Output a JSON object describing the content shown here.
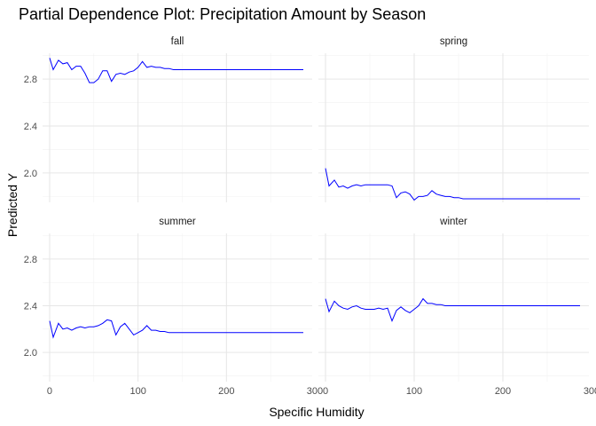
{
  "chart_data": {
    "type": "line",
    "title": "Partial Dependence Plot: Precipitation Amount by Season",
    "xlabel": "Specific Humidity",
    "ylabel": "Predicted Y",
    "xlim": [
      -8,
      297
    ],
    "ylim": [
      1.75,
      3.02
    ],
    "xticks": [
      0,
      100,
      200,
      300
    ],
    "yticks": [
      2.0,
      2.4,
      2.8
    ],
    "grid": true,
    "line_color": "#0000ff",
    "panels": [
      {
        "name": "fall",
        "x": [
          0,
          4,
          10,
          15,
          20,
          25,
          30,
          35,
          40,
          45,
          50,
          55,
          60,
          65,
          70,
          75,
          80,
          85,
          90,
          95,
          100,
          105,
          110,
          115,
          120,
          125,
          130,
          135,
          140,
          145,
          150,
          155,
          160,
          200,
          250,
          287
        ],
        "y": [
          2.98,
          2.88,
          2.96,
          2.93,
          2.94,
          2.88,
          2.91,
          2.91,
          2.85,
          2.77,
          2.77,
          2.8,
          2.87,
          2.87,
          2.78,
          2.84,
          2.85,
          2.84,
          2.86,
          2.87,
          2.9,
          2.95,
          2.9,
          2.91,
          2.9,
          2.9,
          2.89,
          2.89,
          2.88,
          2.88,
          2.88,
          2.88,
          2.88,
          2.88,
          2.88,
          2.88
        ]
      },
      {
        "name": "spring",
        "x": [
          0,
          4,
          10,
          15,
          20,
          25,
          30,
          35,
          40,
          45,
          50,
          55,
          60,
          65,
          70,
          75,
          80,
          85,
          90,
          95,
          100,
          105,
          110,
          115,
          120,
          125,
          130,
          135,
          140,
          145,
          150,
          155,
          160,
          200,
          250,
          287
        ],
        "y": [
          2.04,
          1.89,
          1.94,
          1.88,
          1.89,
          1.87,
          1.89,
          1.9,
          1.89,
          1.9,
          1.9,
          1.9,
          1.9,
          1.9,
          1.9,
          1.89,
          1.79,
          1.83,
          1.84,
          1.82,
          1.77,
          1.8,
          1.8,
          1.81,
          1.85,
          1.82,
          1.81,
          1.8,
          1.8,
          1.79,
          1.79,
          1.78,
          1.78,
          1.78,
          1.78,
          1.78
        ]
      },
      {
        "name": "summer",
        "x": [
          0,
          4,
          10,
          15,
          20,
          25,
          30,
          35,
          40,
          45,
          50,
          55,
          60,
          65,
          70,
          75,
          80,
          85,
          90,
          95,
          100,
          105,
          110,
          115,
          120,
          125,
          130,
          135,
          140,
          145,
          150,
          155,
          160,
          200,
          250,
          287
        ],
        "y": [
          2.27,
          2.13,
          2.25,
          2.2,
          2.21,
          2.19,
          2.21,
          2.22,
          2.21,
          2.22,
          2.22,
          2.23,
          2.25,
          2.28,
          2.27,
          2.15,
          2.22,
          2.25,
          2.2,
          2.15,
          2.17,
          2.19,
          2.23,
          2.19,
          2.19,
          2.18,
          2.18,
          2.17,
          2.17,
          2.17,
          2.17,
          2.17,
          2.17,
          2.17,
          2.17,
          2.17
        ]
      },
      {
        "name": "winter",
        "x": [
          0,
          4,
          10,
          15,
          20,
          25,
          30,
          35,
          40,
          45,
          50,
          55,
          60,
          65,
          70,
          75,
          80,
          85,
          90,
          95,
          100,
          105,
          110,
          115,
          120,
          125,
          130,
          135,
          140,
          145,
          150,
          155,
          160,
          200,
          250,
          287
        ],
        "y": [
          2.46,
          2.35,
          2.44,
          2.4,
          2.38,
          2.37,
          2.39,
          2.4,
          2.38,
          2.37,
          2.37,
          2.37,
          2.38,
          2.37,
          2.38,
          2.27,
          2.36,
          2.39,
          2.36,
          2.34,
          2.37,
          2.4,
          2.46,
          2.42,
          2.42,
          2.41,
          2.41,
          2.4,
          2.4,
          2.4,
          2.4,
          2.4,
          2.4,
          2.4,
          2.4,
          2.4
        ]
      }
    ]
  }
}
